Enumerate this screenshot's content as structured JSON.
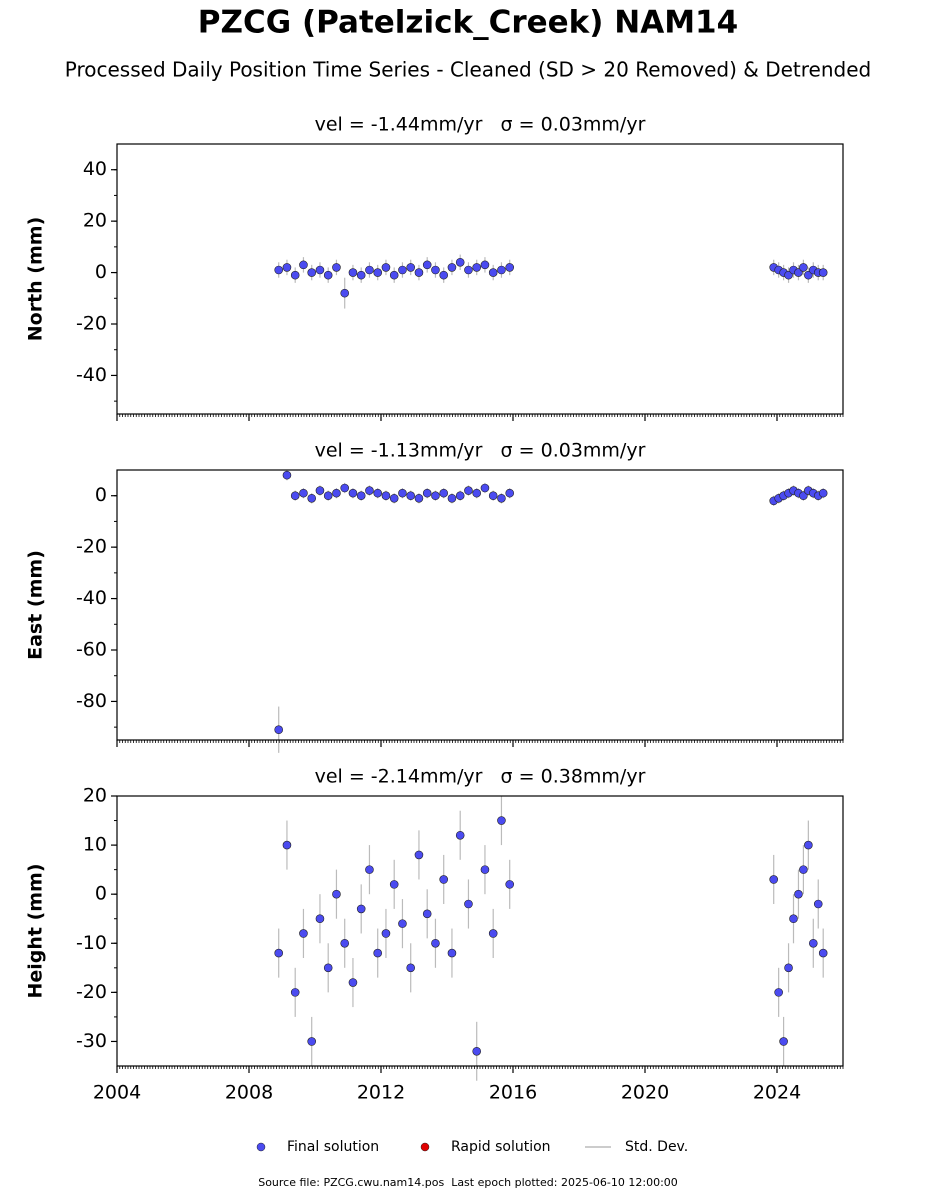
{
  "title": "PZCG (Patelzick_Creek) NAM14",
  "subtitle": "Processed Daily Position Time Series - Cleaned (SD > 20 Removed) & Detrended",
  "source": "Source file: PZCG.cwu.nam14.pos  Last epoch plotted: 2025-06-10 12:00:00",
  "legend": [
    {
      "name": "Final solution",
      "color": "#4b4bf0",
      "kind": "marker"
    },
    {
      "name": "Rapid solution",
      "color": "#e00000",
      "kind": "marker"
    },
    {
      "name": "Std. Dev.",
      "color": "#bbbbbb",
      "kind": "line"
    }
  ],
  "chart_data": [
    {
      "type": "scatter",
      "title": "vel = -1.44mm/yr   σ = 0.03mm/yr",
      "ylabel": "North (mm)",
      "x": [
        2008.9,
        2009.15,
        2009.4,
        2009.65,
        2009.9,
        2010.15,
        2010.4,
        2010.65,
        2010.9,
        2011.15,
        2011.4,
        2011.65,
        2011.9,
        2012.15,
        2012.4,
        2012.65,
        2012.9,
        2013.15,
        2013.4,
        2013.65,
        2013.9,
        2014.15,
        2014.4,
        2014.65,
        2014.9,
        2015.15,
        2015.4,
        2015.65,
        2015.9,
        2023.9,
        2024.05,
        2024.2,
        2024.35,
        2024.5,
        2024.65,
        2024.8,
        2024.95,
        2025.1,
        2025.25,
        2025.4
      ],
      "values": [
        1,
        2,
        -1,
        3,
        0,
        1,
        -1,
        2,
        -8,
        0,
        -1,
        1,
        0,
        2,
        -1,
        1,
        2,
        0,
        3,
        1,
        -1,
        2,
        4,
        1,
        2,
        3,
        0,
        1,
        2,
        2,
        1,
        0,
        -1,
        1,
        0,
        2,
        -1,
        1,
        0,
        0
      ],
      "errors": [
        3,
        3,
        3,
        3,
        3,
        3,
        3,
        3,
        6,
        3,
        3,
        3,
        3,
        3,
        3,
        3,
        3,
        3,
        3,
        3,
        3,
        3,
        3,
        3,
        3,
        3,
        3,
        3,
        3,
        3,
        3,
        3,
        3,
        3,
        3,
        3,
        3,
        3,
        3,
        3
      ],
      "color": "#4b4bf0",
      "error_color": "#bbbbbb",
      "xlim": [
        2004,
        2026
      ],
      "xticks": [
        2004,
        2008,
        2012,
        2016,
        2020,
        2024
      ],
      "xtick_labels": false,
      "ylim": [
        -55,
        50
      ],
      "yticks": [
        -40,
        -20,
        0,
        20,
        40
      ]
    },
    {
      "type": "scatter",
      "title": "vel = -1.13mm/yr   σ = 0.03mm/yr",
      "ylabel": "East (mm)",
      "x": [
        2008.9,
        2009.15,
        2009.4,
        2009.65,
        2009.9,
        2010.15,
        2010.4,
        2010.65,
        2010.9,
        2011.15,
        2011.4,
        2011.65,
        2011.9,
        2012.15,
        2012.4,
        2012.65,
        2012.9,
        2013.15,
        2013.4,
        2013.65,
        2013.9,
        2014.15,
        2014.4,
        2014.65,
        2014.9,
        2015.15,
        2015.4,
        2015.65,
        2015.9,
        2023.9,
        2024.05,
        2024.2,
        2024.35,
        2024.5,
        2024.65,
        2024.8,
        2024.95,
        2025.1,
        2025.25,
        2025.4
      ],
      "values": [
        -91,
        8,
        0,
        1,
        -1,
        2,
        0,
        1,
        3,
        1,
        0,
        2,
        1,
        0,
        -1,
        1,
        0,
        -1,
        1,
        0,
        1,
        -1,
        0,
        2,
        1,
        3,
        0,
        -1,
        1,
        -2,
        -1,
        0,
        1,
        2,
        1,
        0,
        2,
        1,
        0,
        1
      ],
      "errors": [
        9,
        2,
        2,
        2,
        2,
        2,
        2,
        2,
        2,
        2,
        2,
        2,
        2,
        2,
        2,
        2,
        2,
        2,
        2,
        2,
        2,
        2,
        2,
        2,
        2,
        2,
        2,
        2,
        2,
        2,
        2,
        2,
        2,
        2,
        2,
        2,
        2,
        2,
        2,
        2
      ],
      "color": "#4b4bf0",
      "error_color": "#bbbbbb",
      "xlim": [
        2004,
        2026
      ],
      "xticks": [
        2004,
        2008,
        2012,
        2016,
        2020,
        2024
      ],
      "xtick_labels": false,
      "ylim": [
        -95,
        10
      ],
      "yticks": [
        -80,
        -60,
        -40,
        -20,
        0
      ]
    },
    {
      "type": "scatter",
      "title": "vel = -2.14mm/yr   σ = 0.38mm/yr",
      "ylabel": "Height (mm)",
      "x": [
        2008.9,
        2009.15,
        2009.4,
        2009.65,
        2009.9,
        2010.15,
        2010.4,
        2010.65,
        2010.9,
        2011.15,
        2011.4,
        2011.65,
        2011.9,
        2012.15,
        2012.4,
        2012.65,
        2012.9,
        2013.15,
        2013.4,
        2013.65,
        2013.9,
        2014.15,
        2014.4,
        2014.65,
        2014.9,
        2015.15,
        2015.4,
        2015.65,
        2015.9,
        2023.9,
        2024.05,
        2024.2,
        2024.35,
        2024.5,
        2024.65,
        2024.8,
        2024.95,
        2025.1,
        2025.25,
        2025.4
      ],
      "values": [
        -12,
        10,
        -20,
        -8,
        -30,
        -5,
        -15,
        0,
        -10,
        -18,
        -3,
        5,
        -12,
        -8,
        2,
        -6,
        -15,
        8,
        -4,
        -10,
        3,
        -12,
        12,
        -2,
        -32,
        5,
        -8,
        15,
        2,
        3,
        -20,
        -30,
        -15,
        -5,
        0,
        5,
        10,
        -10,
        -2,
        -12
      ],
      "errors": [
        5,
        5,
        5,
        5,
        5,
        5,
        5,
        5,
        5,
        5,
        5,
        5,
        5,
        5,
        5,
        5,
        5,
        5,
        5,
        5,
        5,
        5,
        5,
        5,
        6,
        5,
        5,
        5,
        5,
        5,
        5,
        5,
        5,
        5,
        5,
        5,
        5,
        5,
        5,
        5
      ],
      "color": "#4b4bf0",
      "error_color": "#bbbbbb",
      "xlim": [
        2004,
        2026
      ],
      "xticks": [
        2004,
        2008,
        2012,
        2016,
        2020,
        2024
      ],
      "xtick_labels": true,
      "ylim": [
        -35,
        20
      ],
      "yticks": [
        -30,
        -20,
        -10,
        0,
        10,
        20
      ]
    }
  ]
}
